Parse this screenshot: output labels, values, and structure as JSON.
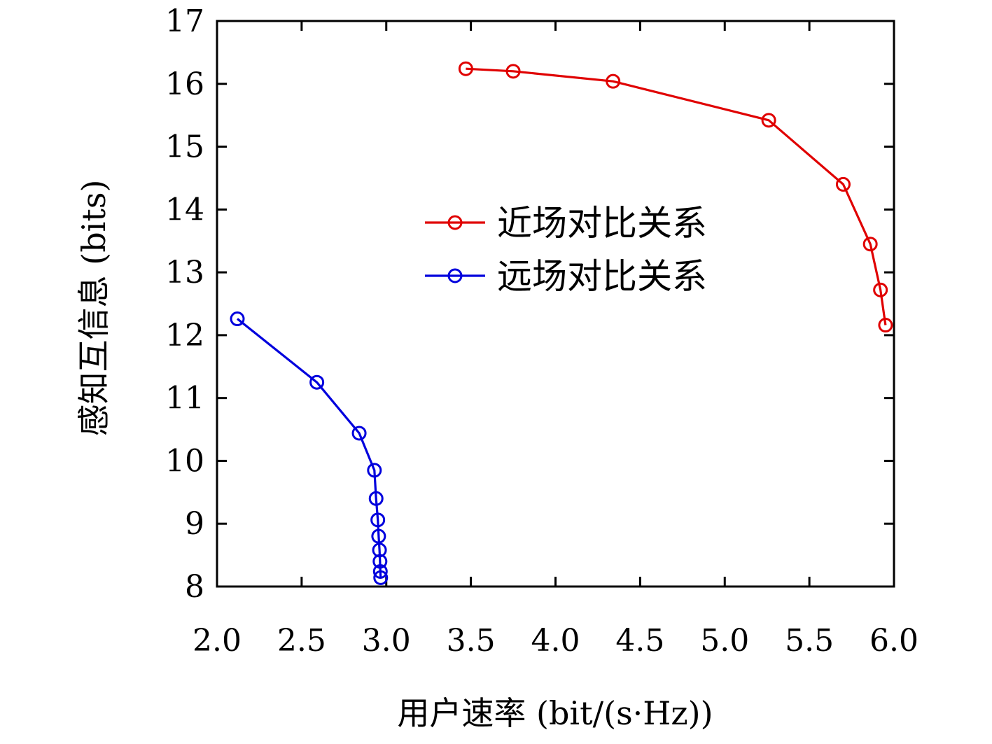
{
  "chart_data": {
    "type": "line",
    "xlabel": "用户速率 (bit/(s·Hz))",
    "ylabel": "感知互信息 (bits)",
    "xlim": [
      2.0,
      6.0
    ],
    "ylim": [
      8,
      17
    ],
    "xticks": [
      "2.0",
      "2.5",
      "3.0",
      "3.5",
      "4.0",
      "4.5",
      "5.0",
      "5.5",
      "6.0"
    ],
    "yticks": [
      "8",
      "9",
      "10",
      "11",
      "12",
      "13",
      "14",
      "15",
      "16",
      "17"
    ],
    "legend_position": "center",
    "grid": false,
    "series": [
      {
        "name": "近场对比关系",
        "color": "#e00000",
        "marker": "circle-open",
        "x": [
          3.47,
          3.75,
          4.34,
          5.26,
          5.7,
          5.86,
          5.92,
          5.95
        ],
        "y": [
          16.24,
          16.2,
          16.04,
          15.42,
          14.4,
          13.45,
          12.72,
          12.16
        ]
      },
      {
        "name": "远场对比关系",
        "color": "#0000dd",
        "marker": "circle-open",
        "x": [
          2.12,
          2.59,
          2.84,
          2.93,
          2.94,
          2.95,
          2.955,
          2.96,
          2.963,
          2.965,
          2.967
        ],
        "y": [
          12.26,
          11.25,
          10.44,
          9.85,
          9.4,
          9.06,
          8.8,
          8.58,
          8.4,
          8.24,
          8.14
        ]
      }
    ]
  }
}
